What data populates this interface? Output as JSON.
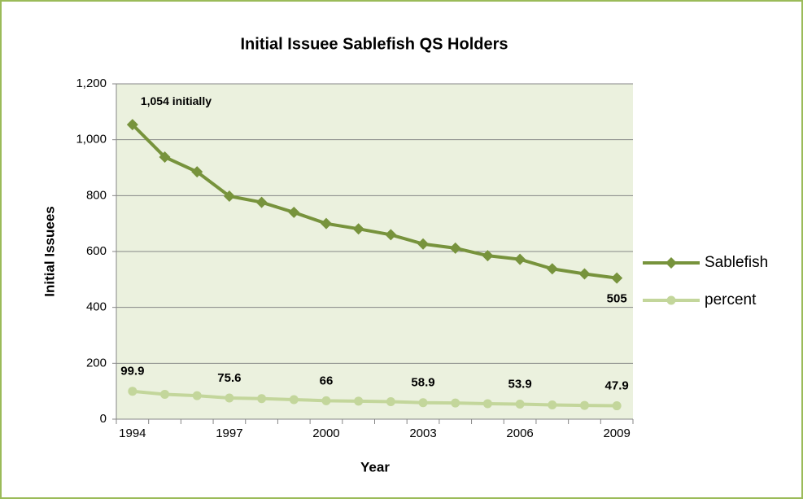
{
  "chart_data": {
    "type": "line",
    "title": "Initial Issuee Sablefish QS Holders",
    "x_label": "Year",
    "y_label": "Initial Issuees",
    "categories": [
      "1994",
      null,
      null,
      "1997",
      null,
      null,
      "2000",
      null,
      null,
      "2003",
      null,
      null,
      "2006",
      null,
      null,
      "2009"
    ],
    "series": [
      {
        "name": "Sablefish",
        "color": "#77933c",
        "marker": "diamond",
        "values": [
          1054,
          938,
          885,
          798,
          776,
          740,
          700,
          681,
          660,
          627,
          612,
          585,
          572,
          538,
          520,
          505
        ],
        "value_labels": [
          "1,054 initially",
          null,
          null,
          null,
          null,
          null,
          null,
          null,
          null,
          null,
          null,
          null,
          null,
          null,
          null,
          "505"
        ]
      },
      {
        "name": "percent",
        "color": "#c3d69b",
        "marker": "circle",
        "values": [
          99.9,
          89,
          84,
          75.6,
          73.6,
          70,
          66,
          64.6,
          62.6,
          58.9,
          58,
          55.5,
          53.9,
          51,
          49.3,
          47.9
        ],
        "value_labels": [
          "99.9",
          null,
          null,
          "75.6",
          null,
          null,
          "66",
          null,
          null,
          "58.9",
          null,
          null,
          "53.9",
          null,
          null,
          "47.9"
        ]
      }
    ],
    "ylim": [
      0,
      1200
    ],
    "yticks": [
      0,
      200,
      400,
      600,
      800,
      {
        "value": 1000,
        "label": "1,000"
      },
      {
        "value": 1200,
        "label": "1,200"
      }
    ],
    "grid": true,
    "legend": "right",
    "plot_background": "#ebf1de",
    "border_color": "#9bbb59"
  }
}
